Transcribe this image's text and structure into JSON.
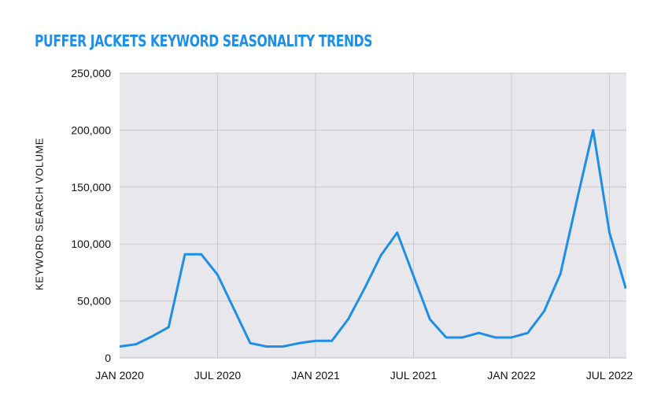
{
  "chart_data": {
    "type": "line",
    "title": "PUFFER JACKETS KEYWORD SEASONALITY TRENDS",
    "xlabel": "",
    "ylabel": "KEYWORD SEARCH VOLUME",
    "ylim": [
      0,
      250000
    ],
    "yticks": [
      0,
      50000,
      100000,
      150000,
      200000,
      250000
    ],
    "ytick_labels": [
      "0",
      "50,000",
      "100,000",
      "150,000",
      "200,000",
      "250,000"
    ],
    "xtick_labels": [
      "JAN 2020",
      "JUL 2020",
      "JAN 2021",
      "JUL 2021",
      "JAN 2022",
      "JUL 2022"
    ],
    "grid": true,
    "line_color": "#1e8fe8",
    "plot_background": "#e8e7ec",
    "x": [
      "2020-01",
      "2020-02",
      "2020-03",
      "2020-04",
      "2020-05",
      "2020-06",
      "2020-07",
      "2020-08",
      "2020-09",
      "2020-10",
      "2020-11",
      "2020-12",
      "2021-01",
      "2021-02",
      "2021-03",
      "2021-04",
      "2021-05",
      "2021-06",
      "2021-07",
      "2021-08",
      "2021-09",
      "2021-10",
      "2021-11",
      "2021-12",
      "2022-01",
      "2022-02",
      "2022-03",
      "2022-04",
      "2022-05",
      "2022-06",
      "2022-07",
      "2022-08"
    ],
    "series": [
      {
        "values": [
          10000,
          12000,
          19000,
          27000,
          91000,
          91000,
          73000,
          43000,
          13000,
          10000,
          10000,
          13000,
          15000,
          15000,
          34000,
          61000,
          90000,
          110000,
          72000,
          34000,
          18000,
          18000,
          22000,
          18000,
          18000,
          22000,
          41000,
          74000,
          138000,
          200000,
          110000,
          61000
        ]
      }
    ]
  }
}
